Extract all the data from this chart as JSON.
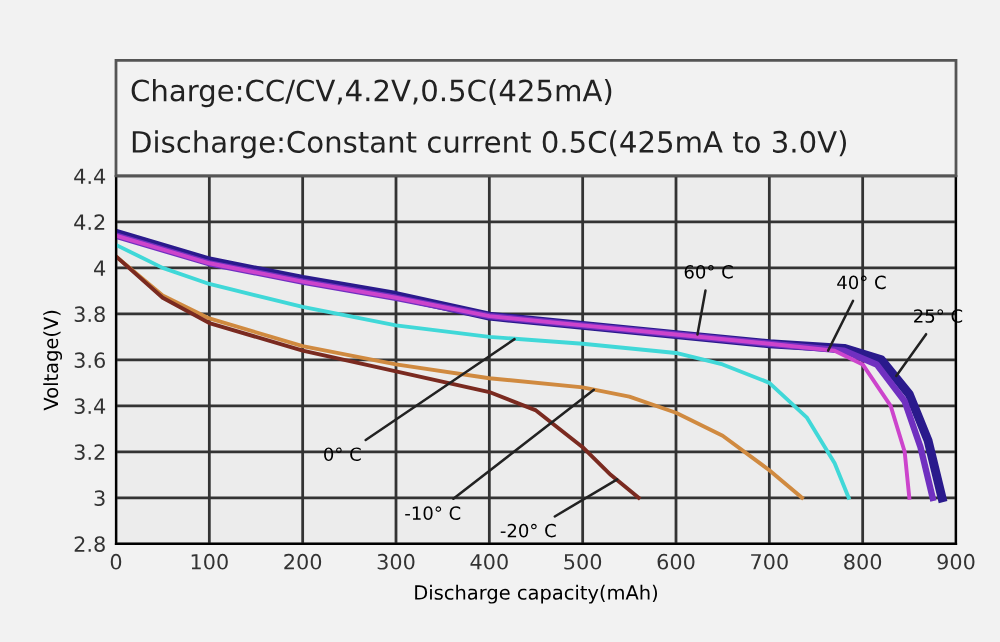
{
  "chart_data": {
    "type": "line",
    "title": "Charge:CC/CV,4.2V,0.5C(425mA)",
    "subtitle": "Discharge:Constant current 0.5C(425mA to 3.0V)",
    "xlabel": "Discharge capacity(mAh)",
    "ylabel": "Voltage(V)",
    "xlim": [
      0,
      900
    ],
    "xticks": [
      0,
      100,
      200,
      300,
      400,
      500,
      600,
      700,
      800,
      900
    ],
    "ylim": [
      2.8,
      4.4
    ],
    "yticks": [
      2.8,
      3,
      3.2,
      3.4,
      3.6,
      3.8,
      4,
      4.2,
      4.4
    ],
    "grid": true,
    "legend": false,
    "line_style": "solid",
    "marker": "none",
    "series": [
      {
        "color": "#2a1a8c",
        "x": [
          0,
          100,
          200,
          300,
          400,
          500,
          600,
          700,
          780,
          820,
          850,
          870,
          885
        ],
        "values": [
          4.15,
          4.03,
          3.95,
          3.88,
          3.79,
          3.75,
          3.71,
          3.67,
          3.65,
          3.6,
          3.45,
          3.25,
          3.0
        ]
      },
      {
        "color": "#7030c0",
        "x": [
          0,
          100,
          200,
          300,
          400,
          500,
          600,
          700,
          780,
          815,
          845,
          862,
          875
        ],
        "values": [
          4.14,
          4.02,
          3.94,
          3.87,
          3.79,
          3.75,
          3.71,
          3.67,
          3.64,
          3.58,
          3.42,
          3.22,
          3.0
        ]
      },
      {
        "color": "#cc44cc",
        "x": [
          0,
          100,
          200,
          300,
          400,
          500,
          600,
          700,
          770,
          800,
          830,
          845,
          850
        ],
        "values": [
          4.14,
          4.02,
          3.94,
          3.87,
          3.79,
          3.75,
          3.71,
          3.67,
          3.64,
          3.58,
          3.4,
          3.2,
          3.0
        ]
      },
      {
        "color": "#40d8d8",
        "x": [
          0,
          50,
          100,
          200,
          300,
          400,
          500,
          600,
          650,
          700,
          740,
          770,
          785
        ],
        "values": [
          4.1,
          4.0,
          3.93,
          3.83,
          3.75,
          3.7,
          3.67,
          3.63,
          3.58,
          3.5,
          3.35,
          3.15,
          3.0
        ]
      },
      {
        "color": "#d08a40",
        "x": [
          0,
          50,
          100,
          200,
          300,
          400,
          500,
          550,
          600,
          650,
          700,
          735
        ],
        "values": [
          4.05,
          3.88,
          3.78,
          3.66,
          3.58,
          3.52,
          3.48,
          3.44,
          3.37,
          3.27,
          3.12,
          3.0
        ]
      },
      {
        "color": "#7a2a20",
        "x": [
          0,
          50,
          100,
          200,
          300,
          400,
          450,
          500,
          530,
          560
        ],
        "values": [
          4.05,
          3.87,
          3.76,
          3.64,
          3.55,
          3.46,
          3.38,
          3.22,
          3.1,
          3.0
        ]
      }
    ],
    "annotations": [
      {
        "text": "60° C",
        "x": 623,
        "y": 3.71
      },
      {
        "text": "40° C",
        "x": 763,
        "y": 3.64
      },
      {
        "text": "25° C",
        "x": 836,
        "y": 3.53
      },
      {
        "text": "0° C",
        "x": 427,
        "y": 3.69
      },
      {
        "text": "-10° C",
        "x": 512,
        "y": 3.47
      },
      {
        "text": "-20° C",
        "x": 537,
        "y": 3.08
      }
    ]
  }
}
